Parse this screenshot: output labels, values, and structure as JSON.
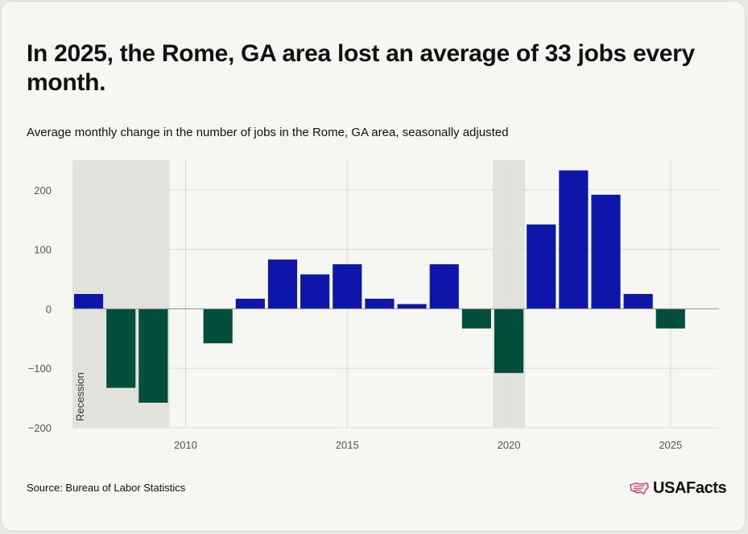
{
  "title": "In 2025, the Rome, GA area lost an average of 33 jobs every month.",
  "subtitle": "Average monthly change in the number of jobs in the Rome, GA area, seasonally adjusted",
  "source": "Source: Bureau of Labor Statistics",
  "logo": {
    "text": "USAFacts",
    "icon": "us-map-flag-icon"
  },
  "colors": {
    "positive": "#0d16a8",
    "negative": "#044e3e",
    "recession": "#e2e2dd",
    "zero_line": "#9a9a9a",
    "grid": "#dcdcd6"
  },
  "chart_data": {
    "type": "bar",
    "x": [
      2007,
      2008,
      2009,
      2010,
      2011,
      2012,
      2013,
      2014,
      2015,
      2016,
      2017,
      2018,
      2019,
      2020,
      2021,
      2022,
      2023,
      2024,
      2025
    ],
    "values": [
      25,
      -133,
      -158,
      null,
      -58,
      17,
      83,
      58,
      75,
      17,
      8,
      75,
      -33,
      -108,
      142,
      233,
      192,
      25,
      -33
    ],
    "xticks": [
      2010,
      2015,
      2020,
      2025
    ],
    "yticks": [
      200,
      100,
      0,
      -100,
      -200
    ],
    "ytick_labels": [
      "200",
      "100",
      "0",
      "−100",
      "−200"
    ],
    "ylim": [
      -200,
      250
    ],
    "xlim": [
      2006.5,
      2026.5
    ],
    "recessions": [
      {
        "start": 2006.5,
        "end": 2009.5,
        "label": "Recession"
      },
      {
        "start": 2019.5,
        "end": 2020.5,
        "label": ""
      }
    ],
    "grid": true
  }
}
